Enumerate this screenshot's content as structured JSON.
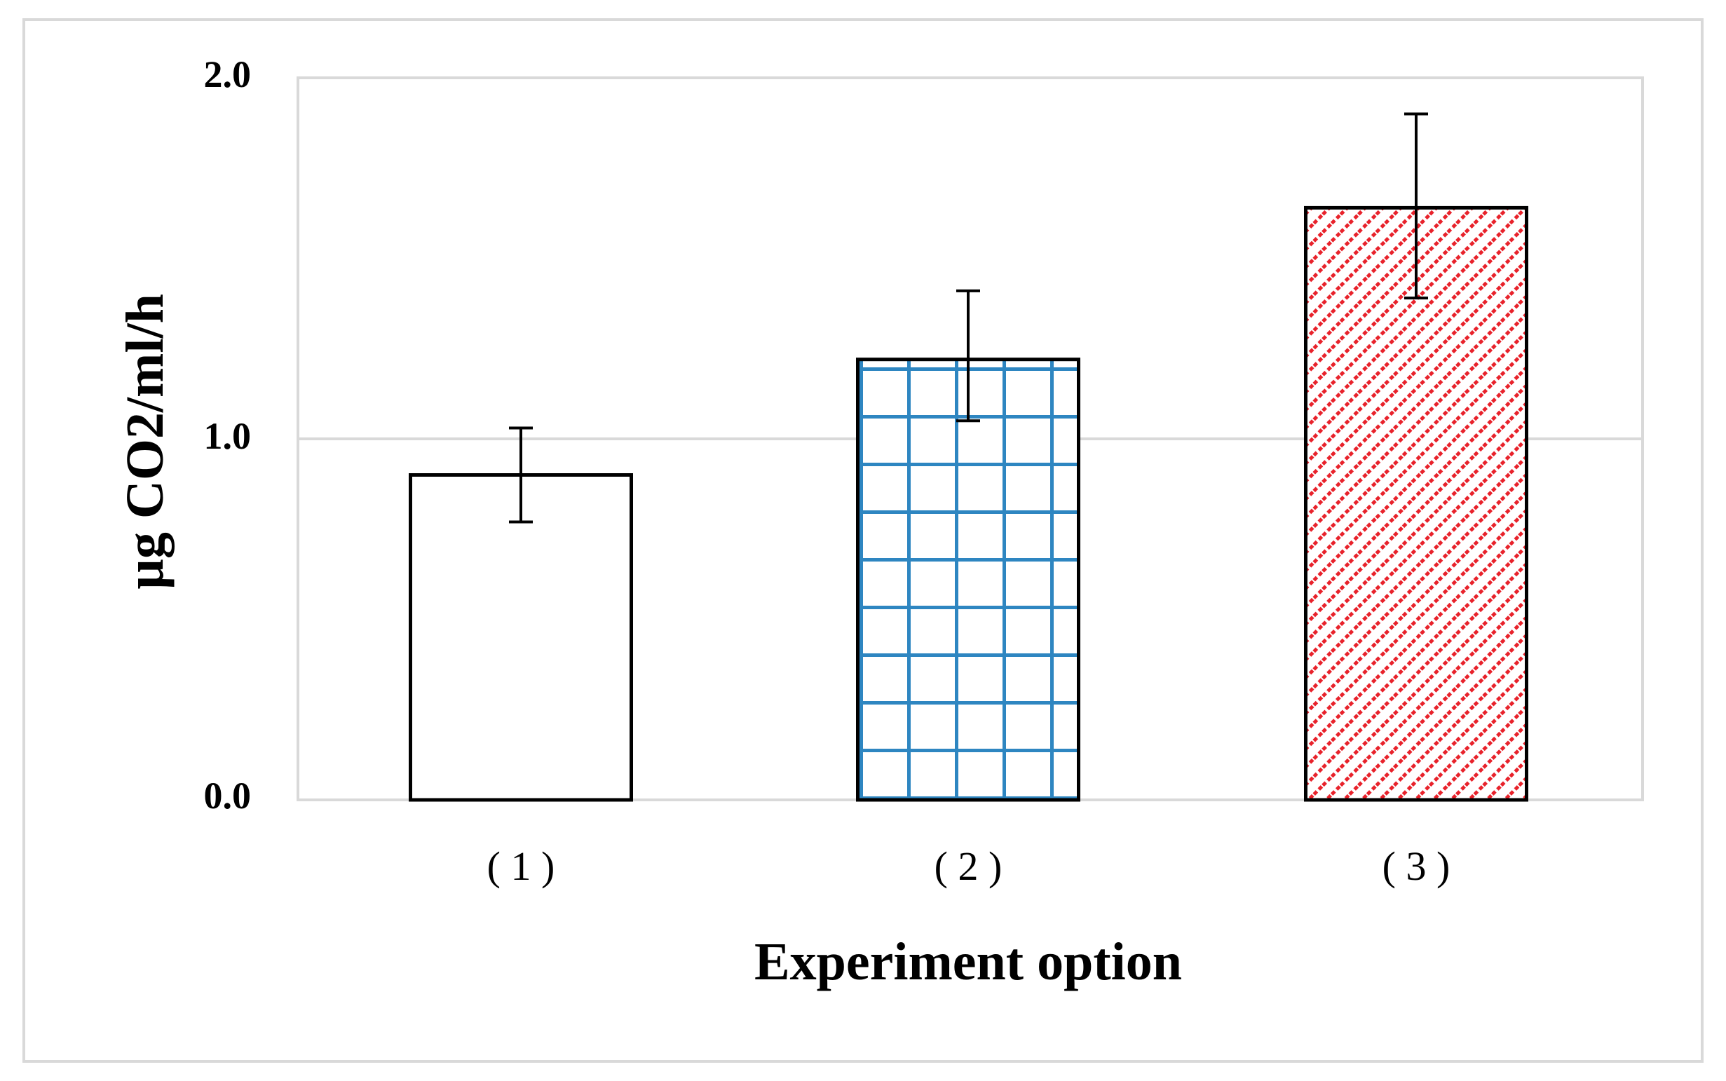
{
  "chart_data": {
    "type": "bar",
    "title": "",
    "xlabel": "Experiment option",
    "ylabel": "µg CO2/ml/h",
    "categories": [
      "( 1 )",
      "( 2 )",
      "( 3 )"
    ],
    "values": [
      0.9,
      1.22,
      1.64
    ],
    "error_bars": [
      {
        "low": 0.77,
        "high": 1.03
      },
      {
        "low": 1.05,
        "high": 1.41
      },
      {
        "low": 1.39,
        "high": 1.9
      }
    ],
    "bar_fills": [
      "plain",
      "grid",
      "diagonal-hatch"
    ],
    "ylim": [
      0,
      2.0
    ],
    "yticks": [
      "0.0",
      "1.0",
      "2.0"
    ],
    "ytick_values": [
      0,
      1.0,
      2.0
    ],
    "grid": true,
    "legend": "none",
    "colors": {
      "grid_pattern": "#2e86c1",
      "hatch_pattern": "#e8222b",
      "bar_outline": "#000000",
      "gridline": "#d9d9d9",
      "frame": "#d9d9d9"
    }
  }
}
